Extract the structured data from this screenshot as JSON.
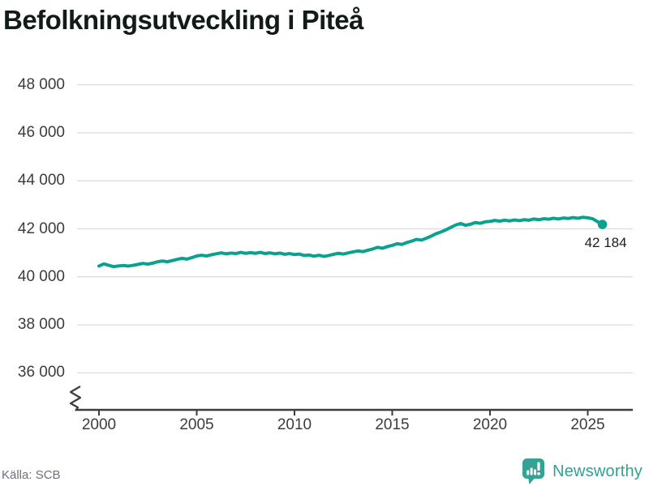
{
  "header": {
    "title": "Befolkningsutveckling i Piteå"
  },
  "footer": {
    "source": "Källa: SCB",
    "brand": "Newsworthy"
  },
  "colors": {
    "line": "#0ba190",
    "logo": "#35a294",
    "grid": "#dcdcdc",
    "axis": "#3d3d3d"
  },
  "chart_data": {
    "type": "line",
    "title": "Befolkningsutveckling i Piteå",
    "xlabel": "",
    "ylabel": "",
    "grid": true,
    "axis_break": true,
    "ylim": [
      36000,
      48000
    ],
    "yticks": [
      {
        "value": 48000,
        "label": "48 000"
      },
      {
        "value": 46000,
        "label": "46 000"
      },
      {
        "value": 44000,
        "label": "44 000"
      },
      {
        "value": 42000,
        "label": "42 000"
      },
      {
        "value": 40000,
        "label": "40 000"
      },
      {
        "value": 38000,
        "label": "38 000"
      },
      {
        "value": 36000,
        "label": "36 000"
      }
    ],
    "xticks": [
      {
        "value": 2000,
        "label": "2000"
      },
      {
        "value": 2005,
        "label": "2005"
      },
      {
        "value": 2010,
        "label": "2010"
      },
      {
        "value": 2015,
        "label": "2015"
      },
      {
        "value": 2020,
        "label": "2020"
      },
      {
        "value": 2025,
        "label": "2025"
      }
    ],
    "end_label": "42 184",
    "end_value": 42184,
    "x": [
      2000,
      2000.25,
      2000.5,
      2000.75,
      2001,
      2001.25,
      2001.5,
      2001.75,
      2002,
      2002.25,
      2002.5,
      2002.75,
      2003,
      2003.25,
      2003.5,
      2003.75,
      2004,
      2004.25,
      2004.5,
      2004.75,
      2005,
      2005.25,
      2005.5,
      2005.75,
      2006,
      2006.25,
      2006.5,
      2006.75,
      2007,
      2007.25,
      2007.5,
      2007.75,
      2008,
      2008.25,
      2008.5,
      2008.75,
      2009,
      2009.25,
      2009.5,
      2009.75,
      2010,
      2010.25,
      2010.5,
      2010.75,
      2011,
      2011.25,
      2011.5,
      2011.75,
      2012,
      2012.25,
      2012.5,
      2012.75,
      2013,
      2013.25,
      2013.5,
      2013.75,
      2014,
      2014.25,
      2014.5,
      2014.75,
      2015,
      2015.25,
      2015.5,
      2015.75,
      2016,
      2016.25,
      2016.5,
      2016.75,
      2017,
      2017.25,
      2017.5,
      2017.75,
      2018,
      2018.25,
      2018.5,
      2018.75,
      2019,
      2019.25,
      2019.5,
      2019.75,
      2020,
      2020.25,
      2020.5,
      2020.75,
      2021,
      2021.25,
      2021.5,
      2021.75,
      2022,
      2022.25,
      2022.5,
      2022.75,
      2023,
      2023.25,
      2023.5,
      2023.75,
      2024,
      2024.25,
      2024.5,
      2024.75,
      2025,
      2025.25,
      2025.5,
      2025.75
    ],
    "values": [
      40450,
      40540,
      40480,
      40425,
      40455,
      40475,
      40450,
      40480,
      40520,
      40560,
      40530,
      40570,
      40630,
      40660,
      40630,
      40680,
      40730,
      40770,
      40740,
      40800,
      40870,
      40900,
      40870,
      40920,
      40960,
      41000,
      40960,
      40990,
      40970,
      41020,
      40980,
      41010,
      40980,
      41020,
      40970,
      41000,
      40960,
      40990,
      40940,
      40970,
      40930,
      40950,
      40890,
      40910,
      40860,
      40900,
      40850,
      40890,
      40940,
      40980,
      40950,
      41000,
      41040,
      41080,
      41050,
      41110,
      41160,
      41230,
      41190,
      41260,
      41310,
      41380,
      41350,
      41430,
      41490,
      41560,
      41530,
      41610,
      41700,
      41800,
      41870,
      41960,
      42060,
      42160,
      42220,
      42150,
      42190,
      42260,
      42230,
      42290,
      42310,
      42350,
      42320,
      42360,
      42330,
      42370,
      42340,
      42380,
      42360,
      42410,
      42380,
      42420,
      42400,
      42440,
      42410,
      42450,
      42430,
      42470,
      42440,
      42480,
      42460,
      42420,
      42300,
      42184
    ]
  }
}
